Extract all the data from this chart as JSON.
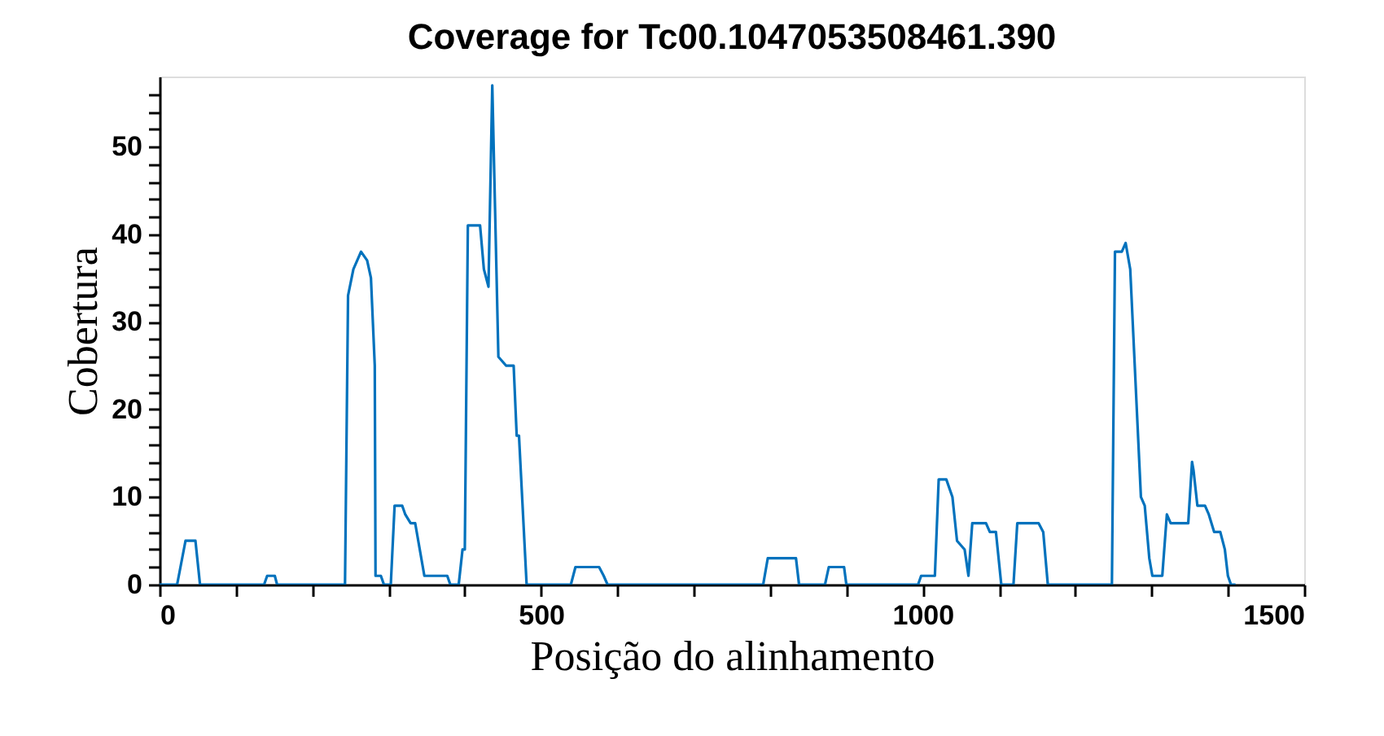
{
  "chart_data": {
    "type": "line",
    "title": "Coverage for Tc00.1047053508461.390",
    "xlabel": "Posição do alinhamento",
    "ylabel": "Cobertura",
    "x": [
      0,
      23,
      34,
      47,
      53,
      137,
      141,
      151,
      154,
      243,
      247,
      254,
      264,
      272,
      277,
      282,
      283,
      290,
      294,
      303,
      308,
      318,
      322,
      329,
      335,
      347,
      377,
      381,
      392,
      397,
      400,
      404,
      420,
      425,
      431,
      436,
      444,
      454,
      464,
      468,
      471,
      481,
      539,
      545,
      576,
      582,
      587,
      791,
      797,
      834,
      838,
      872,
      877,
      897,
      900,
      994,
      998,
      1016,
      1021,
      1031,
      1039,
      1045,
      1055,
      1060,
      1065,
      1083,
      1088,
      1096,
      1103,
      1119,
      1124,
      1152,
      1158,
      1164,
      1248,
      1252,
      1261,
      1266,
      1272,
      1286,
      1291,
      1297,
      1301,
      1314,
      1320,
      1325,
      1348,
      1353,
      1355,
      1360,
      1370,
      1375,
      1382,
      1390,
      1396,
      1400,
      1404,
      1410
    ],
    "series": [
      {
        "color": "#0072bd",
        "values": [
          0,
          0,
          5,
          5,
          0,
          0,
          1,
          1,
          0,
          0,
          33,
          36,
          38,
          37,
          35,
          25,
          1,
          1,
          0,
          0,
          9,
          9,
          8,
          7,
          7,
          1,
          1,
          0,
          0,
          4,
          4,
          41,
          41,
          36,
          34,
          57,
          26,
          25,
          25,
          17,
          17,
          0,
          0,
          2,
          2,
          1,
          0,
          0,
          3,
          3,
          0,
          0,
          2,
          2,
          0,
          0,
          1,
          1,
          12,
          12,
          10,
          5,
          4,
          1,
          7,
          7,
          6,
          6,
          0,
          0,
          7,
          7,
          6,
          0,
          0,
          38,
          38,
          39,
          36,
          10,
          9,
          3,
          1,
          1,
          8,
          7,
          7,
          14,
          13,
          9,
          9,
          8,
          6,
          6,
          4,
          1,
          0,
          0
        ]
      }
    ],
    "xlim": [
      0,
      1500
    ],
    "ylim": [
      0,
      58
    ],
    "xticks": [
      0,
      {
        "value": 100,
        "label": null
      },
      {
        "value": 200,
        "label": null
      },
      {
        "value": 300,
        "label": null
      },
      {
        "value": 400,
        "label": null
      },
      500,
      {
        "value": 600,
        "label": null
      },
      {
        "value": 700,
        "label": null
      },
      {
        "value": 800,
        "label": null
      },
      {
        "value": 900,
        "label": null
      },
      1000,
      {
        "value": 1100,
        "label": null
      },
      {
        "value": 1200,
        "label": null
      },
      {
        "value": 1300,
        "label": null
      },
      {
        "value": 1400,
        "label": null
      },
      1500
    ],
    "yticks": [
      0,
      {
        "value": 2,
        "label": null
      },
      {
        "value": 4,
        "label": null
      },
      {
        "value": 6,
        "label": null
      },
      {
        "value": 8,
        "label": null
      },
      10,
      {
        "value": 12,
        "label": null
      },
      {
        "value": 14,
        "label": null
      },
      {
        "value": 16,
        "label": null
      },
      {
        "value": 18,
        "label": null
      },
      20,
      {
        "value": 22,
        "label": null
      },
      {
        "value": 24,
        "label": null
      },
      {
        "value": 26,
        "label": null
      },
      {
        "value": 28,
        "label": null
      },
      30,
      {
        "value": 32,
        "label": null
      },
      {
        "value": 34,
        "label": null
      },
      {
        "value": 36,
        "label": null
      },
      {
        "value": 38,
        "label": null
      },
      40,
      {
        "value": 42,
        "label": null
      },
      {
        "value": 44,
        "label": null
      },
      {
        "value": 46,
        "label": null
      },
      {
        "value": 48,
        "label": null
      },
      50,
      {
        "value": 52,
        "label": null
      },
      {
        "value": 54,
        "label": null
      },
      {
        "value": 56,
        "label": null
      }
    ],
    "grid": false,
    "marker": "none",
    "line_style": "solid"
  }
}
